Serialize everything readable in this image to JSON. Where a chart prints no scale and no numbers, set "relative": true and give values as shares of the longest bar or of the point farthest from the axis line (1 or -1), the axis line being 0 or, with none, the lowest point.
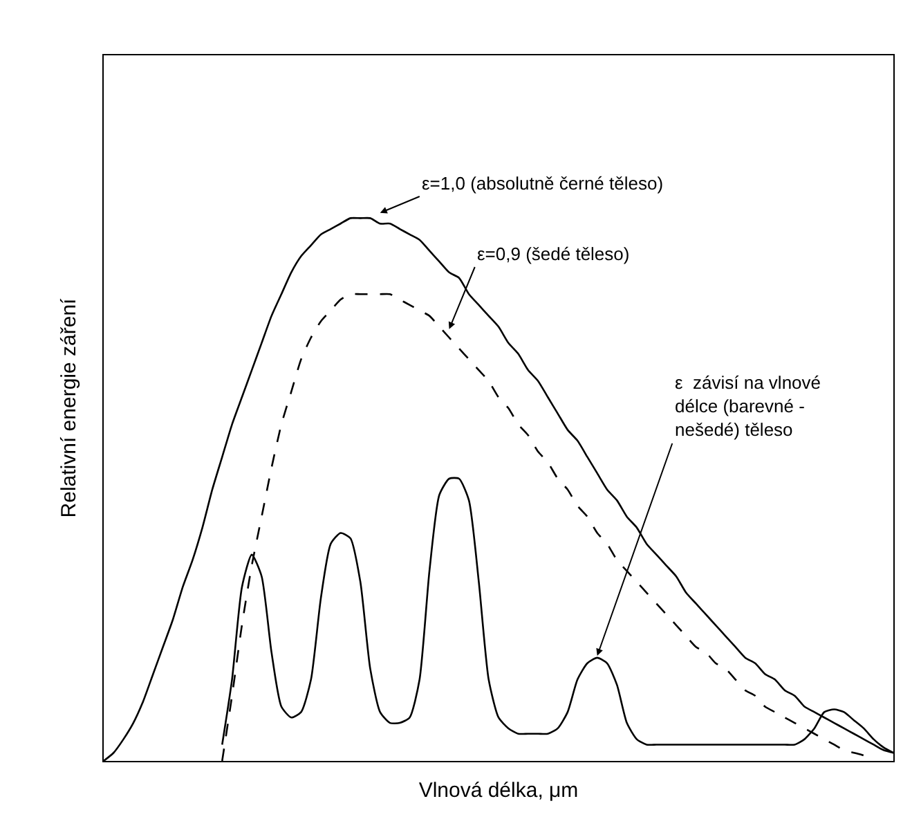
{
  "chart_data": {
    "type": "line",
    "relative": true,
    "xlabel": "Vlnová délka, μm",
    "ylabel": "Relativní energie záření",
    "categories": [
      null,
      null,
      null,
      null,
      null,
      null,
      null,
      null,
      null,
      null,
      null,
      null,
      null,
      null,
      null,
      null,
      null,
      null,
      null,
      null,
      null,
      null,
      null,
      null,
      null,
      null,
      null,
      null,
      null,
      null,
      null,
      null,
      null,
      null,
      null,
      null,
      null,
      null,
      null,
      null,
      null,
      null,
      null,
      null,
      null,
      null,
      null,
      null,
      null,
      null,
      null,
      null,
      null,
      null,
      null,
      null,
      null,
      null,
      null,
      null,
      null,
      null,
      null,
      null,
      null,
      null,
      null,
      null,
      null,
      null,
      null,
      null,
      null,
      null,
      null,
      null,
      null,
      null,
      null,
      null,
      null
    ],
    "series": [
      {
        "color": "#000000",
        "line_style": "solid",
        "values": [
          0,
          0.015,
          0.04,
          0.07,
          0.11,
          0.16,
          0.21,
          0.26,
          0.32,
          0.37,
          0.43,
          0.5,
          0.56,
          0.62,
          0.67,
          0.72,
          0.77,
          0.82,
          0.86,
          0.9,
          0.93,
          0.95,
          0.97,
          0.98,
          0.99,
          1.0,
          1.0,
          1.0,
          0.99,
          0.99,
          0.98,
          0.97,
          0.96,
          0.94,
          0.92,
          0.9,
          0.89,
          0.86,
          0.84,
          0.82,
          0.8,
          0.77,
          0.75,
          0.72,
          0.7,
          0.67,
          0.64,
          0.61,
          0.59,
          0.56,
          0.53,
          0.5,
          0.48,
          0.45,
          0.43,
          0.4,
          0.38,
          0.36,
          0.34,
          0.31,
          0.29,
          0.27,
          0.25,
          0.23,
          0.21,
          0.19,
          0.18,
          0.16,
          0.15,
          0.13,
          0.12,
          0.1,
          0.09,
          0.08,
          0.07,
          0.06,
          0.05,
          0.04,
          0.03,
          0.02,
          0.015
        ]
      },
      {
        "color": "#000000",
        "line_style": "dashed",
        "values": [
          null,
          null,
          null,
          null,
          null,
          null,
          null,
          null,
          null,
          null,
          null,
          null,
          0,
          0.12,
          0.25,
          0.36,
          0.45,
          0.54,
          0.62,
          0.68,
          0.74,
          0.78,
          0.81,
          0.83,
          0.85,
          0.86,
          0.86,
          0.86,
          0.86,
          0.86,
          0.85,
          0.84,
          0.83,
          0.82,
          0.8,
          0.78,
          0.76,
          0.74,
          0.72,
          0.7,
          0.67,
          0.65,
          0.62,
          0.6,
          0.57,
          0.55,
          0.52,
          0.5,
          0.47,
          0.45,
          0.42,
          0.4,
          0.37,
          0.35,
          0.33,
          0.31,
          0.29,
          0.27,
          0.25,
          0.23,
          0.21,
          0.2,
          0.18,
          0.17,
          0.15,
          0.13,
          0.12,
          0.1,
          0.09,
          0.08,
          0.07,
          0.06,
          0.05,
          0.04,
          0.03,
          0.02,
          0.015,
          0.01,
          0,
          null,
          null
        ]
      },
      {
        "color": "#000000",
        "line_style": "solid",
        "values": [
          null,
          null,
          null,
          null,
          null,
          null,
          null,
          null,
          null,
          null,
          null,
          null,
          0.03,
          0.15,
          0.32,
          0.38,
          0.34,
          0.2,
          0.1,
          0.08,
          0.09,
          0.15,
          0.3,
          0.4,
          0.42,
          0.41,
          0.33,
          0.17,
          0.09,
          0.07,
          0.07,
          0.08,
          0.15,
          0.35,
          0.49,
          0.52,
          0.52,
          0.48,
          0.33,
          0.15,
          0.08,
          0.06,
          0.05,
          0.05,
          0.05,
          0.05,
          0.06,
          0.09,
          0.15,
          0.18,
          0.19,
          0.18,
          0.14,
          0.07,
          0.04,
          0.03,
          0.03,
          0.03,
          0.03,
          0.03,
          0.03,
          0.03,
          0.03,
          0.03,
          0.03,
          0.03,
          0.03,
          0.03,
          0.03,
          0.03,
          0.03,
          0.04,
          0.06,
          0.09,
          0.095,
          0.09,
          0.075,
          0.06,
          0.04,
          0.025,
          0.015
        ]
      }
    ],
    "annotations": [
      "ε=1,0 (absolutně černé těleso)",
      "ε=0,9 (šedé těleso)",
      "ε  závisí na vlnové\ndélce (barevné -\nnešedé) těleso"
    ],
    "tick_labels": false
  }
}
